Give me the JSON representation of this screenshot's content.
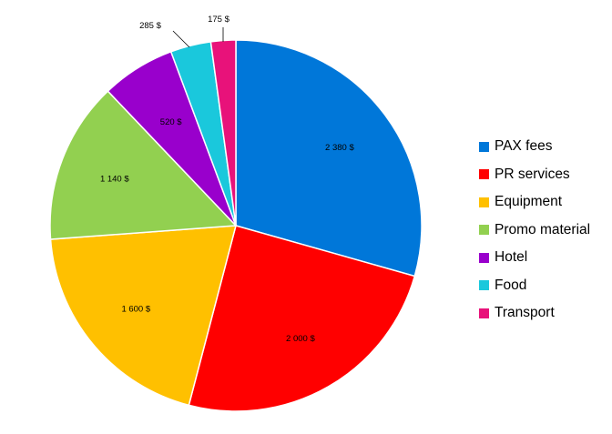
{
  "chart_data": {
    "type": "pie",
    "categories": [
      "PAX fees",
      "PR services",
      "Equipment",
      "Promo material",
      "Hotel",
      "Food",
      "Transport"
    ],
    "values": [
      2380,
      2000,
      1600,
      1140,
      520,
      285,
      175
    ],
    "data_labels": [
      "2 380 $",
      "2 000 $",
      "1 600 $",
      "1 140 $",
      "520 $",
      "285 $",
      "175 $"
    ],
    "colors": [
      "#0077D9",
      "#FF0000",
      "#FFC000",
      "#92D050",
      "#9900CC",
      "#1AC8DC",
      "#E8127A"
    ],
    "start_angle": "12 o'clock",
    "direction": "clockwise",
    "legend_position": "right",
    "title": ""
  }
}
